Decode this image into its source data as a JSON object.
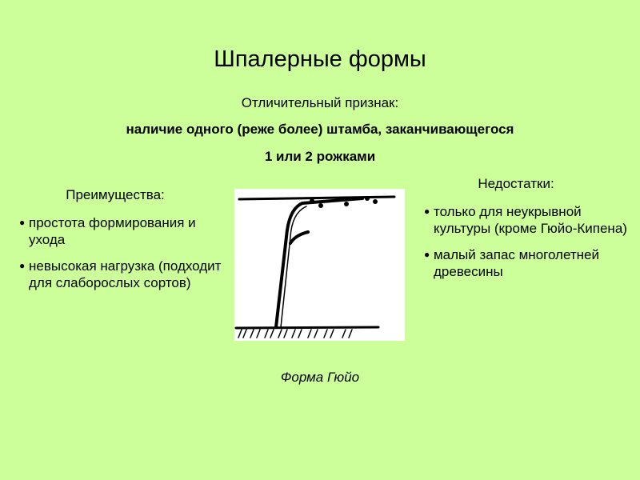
{
  "slide": {
    "title": "Шпалерные формы",
    "feature_label": "Отличительный признак:",
    "feature_line1": "наличие одного (реже более) штамба, заканчивающегося",
    "feature_line2": "1 или 2 рожками",
    "advantages": {
      "heading": "Преимущества:",
      "items": [
        "простота формирования и ухода",
        "невысокая нагрузка (подходит для слаборослых сортов)"
      ]
    },
    "disadvantages": {
      "heading": "Недостатки:",
      "items": [
        "только для неукрывной культуры (кроме Гюйо-Кипена)",
        "малый запас многолетней древесины"
      ]
    },
    "figure_caption": "Форма Гюйо",
    "bullet_glyph": "●",
    "background_color": "#ccff99"
  }
}
